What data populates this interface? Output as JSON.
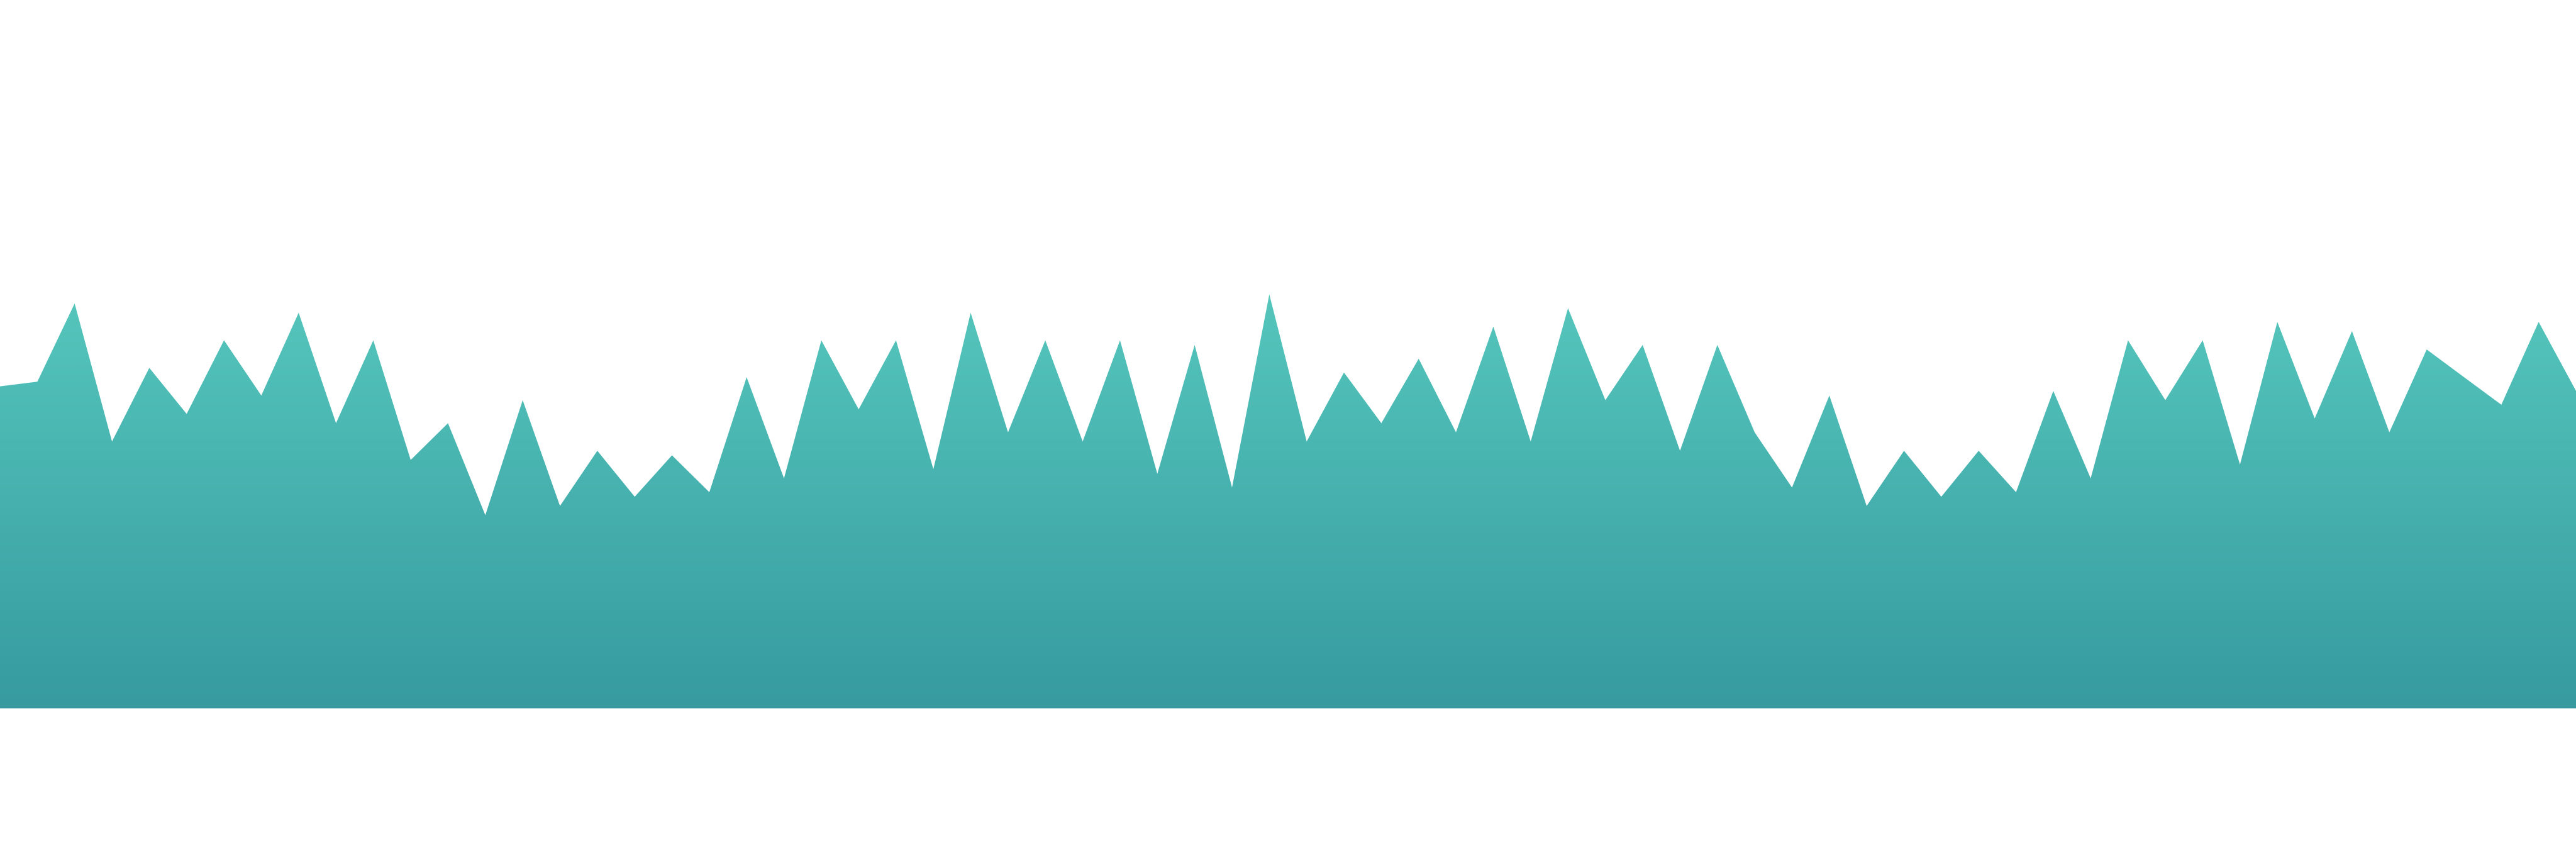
{
  "chart_data": {
    "type": "area",
    "title": "",
    "xlabel": "",
    "ylabel": "",
    "grid": false,
    "legend": "none",
    "ylim": [
      0,
      100
    ],
    "colors": {
      "fill_top": "#55c6bc",
      "fill_bottom": "#369a9f",
      "background": "#ffffff"
    },
    "series": [
      {
        "values": [
          70,
          71,
          88,
          58,
          74,
          64,
          80,
          68,
          86,
          62,
          80,
          54,
          62,
          42,
          67,
          44,
          56,
          46,
          55,
          47,
          72,
          50,
          80,
          65,
          80,
          52,
          86,
          60,
          80,
          58,
          80,
          51,
          79,
          48,
          90,
          58,
          73,
          62,
          76,
          60,
          83,
          58,
          87,
          67,
          79,
          56,
          79,
          60,
          48,
          68,
          44,
          56,
          46,
          56,
          47,
          69,
          50,
          80,
          67,
          80,
          53,
          84,
          63,
          82,
          60,
          78,
          72,
          66,
          84,
          69
        ]
      }
    ]
  }
}
